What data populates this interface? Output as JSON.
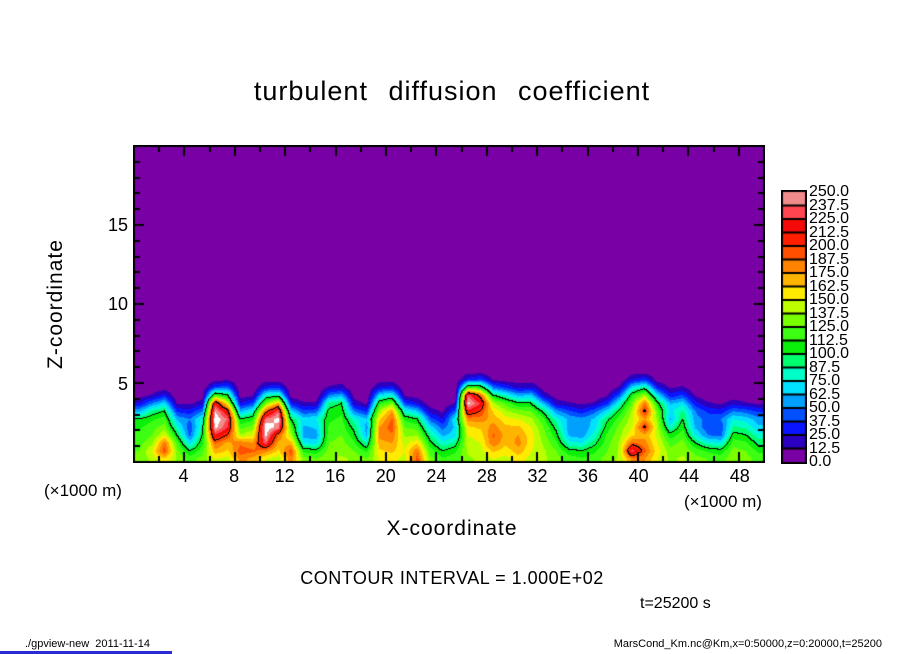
{
  "title": "turbulent diffusion coefficient",
  "xlabel": "X-coordinate",
  "ylabel": "Z-coordinate",
  "x_unit_left": "(×1000 m)",
  "x_unit_right": "(×1000 m)",
  "contour_note": "CONTOUR INTERVAL = 1.000E+02",
  "time_label": "t=25200 s",
  "footer_left": "./gpview-new  2011-11-14",
  "footer_right": "MarsCond_Km.nc@Km,x=0:50000,z=0:20000,t=25200",
  "colorbar": {
    "labels_top_to_bottom": [
      "250.0",
      "237.5",
      "225.0",
      "212.5",
      "200.0",
      "187.5",
      "175.0",
      "162.5",
      "150.0",
      "137.5",
      "125.0",
      "112.5",
      "100.0",
      "87.5",
      "75.0",
      "62.5",
      "50.0",
      "37.5",
      "25.0",
      "12.5",
      "0.0"
    ]
  },
  "chart_data": {
    "type": "heatmap",
    "title": "turbulent diffusion coefficient",
    "xlabel": "X-coordinate",
    "ylabel": "Z-coordinate",
    "x_unit": "×1000 m",
    "xlim": [
      0,
      50
    ],
    "ylim": [
      0,
      20
    ],
    "x_major_ticks": [
      4,
      8,
      12,
      16,
      20,
      24,
      28,
      32,
      36,
      40,
      44,
      48
    ],
    "x_minor_step": 2,
    "y_major_ticks": [
      5,
      10,
      15
    ],
    "y_minor_step": 1,
    "contour_interval": 100,
    "time_seconds": 25200,
    "levels_step": 12.5,
    "levels_max": 250,
    "level_colors_low_to_high": [
      "#7800A5",
      "#2B00BE",
      "#0A14FF",
      "#0050FF",
      "#00A0FF",
      "#00E1FF",
      "#00FFC8",
      "#00FF6E",
      "#0AF00A",
      "#3CFF14",
      "#78FF00",
      "#BEFF00",
      "#FFEB00",
      "#FFB400",
      "#FF8200",
      "#FF5000",
      "#FF1E00",
      "#F50A0A",
      "#FF4650",
      "#F08C8C"
    ],
    "overflow_color": "#FFFFFF",
    "contour_color": "#000000",
    "grid": {
      "orientation": "columns (each array runs bottom to top along z_centers); values above top z fade to 0",
      "x_centers": [
        0.5,
        1.5,
        2.5,
        3.5,
        4.5,
        5.5,
        6.5,
        7.5,
        8.5,
        9.5,
        10.5,
        11.5,
        12.5,
        13.5,
        14.5,
        15.5,
        16.5,
        17.5,
        18.5,
        19.5,
        20.5,
        21.5,
        22.5,
        23.5,
        24.5,
        25.5,
        26.5,
        27.5,
        28.5,
        29.5,
        30.5,
        31.5,
        32.5,
        33.5,
        34.5,
        35.5,
        36.5,
        37.5,
        38.5,
        39.5,
        40.5,
        41.5,
        42.5,
        43.5,
        44.5,
        45.5,
        46.5,
        47.5,
        48.5,
        49.5
      ],
      "z_centers": [
        0.25,
        0.75,
        1.25,
        1.75,
        2.25,
        2.75,
        3.25,
        3.75,
        4.25,
        4.75,
        5.25,
        5.75
      ],
      "columns": [
        [
          130,
          125,
          120,
          115,
          110,
          100,
          60,
          25,
          5,
          0,
          0,
          0
        ],
        [
          140,
          150,
          135,
          125,
          120,
          110,
          90,
          50,
          15,
          0,
          0,
          0
        ],
        [
          160,
          195,
          185,
          150,
          130,
          120,
          100,
          70,
          30,
          5,
          0,
          0
        ],
        [
          135,
          130,
          120,
          100,
          80,
          60,
          35,
          10,
          0,
          0,
          0,
          0
        ],
        [
          120,
          100,
          70,
          45,
          40,
          50,
          30,
          10,
          0,
          0,
          0,
          0
        ],
        [
          130,
          120,
          110,
          100,
          90,
          80,
          50,
          20,
          5,
          0,
          0,
          0
        ],
        [
          150,
          170,
          190,
          225,
          255,
          262,
          250,
          220,
          120,
          40,
          5,
          0
        ],
        [
          145,
          160,
          170,
          200,
          225,
          235,
          210,
          150,
          100,
          45,
          10,
          0
        ],
        [
          180,
          195,
          185,
          140,
          120,
          100,
          60,
          25,
          5,
          0,
          0,
          0
        ],
        [
          170,
          190,
          175,
          150,
          130,
          110,
          80,
          40,
          10,
          0,
          0,
          0
        ],
        [
          150,
          180,
          235,
          255,
          260,
          240,
          190,
          130,
          80,
          30,
          5,
          0
        ],
        [
          140,
          160,
          170,
          190,
          245,
          255,
          235,
          170,
          90,
          35,
          5,
          0
        ],
        [
          185,
          195,
          170,
          140,
          120,
          100,
          70,
          30,
          5,
          0,
          0,
          0
        ],
        [
          130,
          110,
          75,
          55,
          60,
          70,
          40,
          15,
          0,
          0,
          0,
          0
        ],
        [
          125,
          105,
          70,
          55,
          65,
          75,
          45,
          15,
          0,
          0,
          0,
          0
        ],
        [
          135,
          130,
          125,
          120,
          115,
          110,
          105,
          90,
          50,
          15,
          0,
          0
        ],
        [
          140,
          135,
          130,
          125,
          120,
          115,
          110,
          100,
          60,
          20,
          5,
          0
        ],
        [
          135,
          125,
          115,
          105,
          95,
          80,
          50,
          20,
          5,
          0,
          0,
          0
        ],
        [
          125,
          110,
          85,
          60,
          55,
          65,
          35,
          10,
          0,
          0,
          0,
          0
        ],
        [
          150,
          160,
          170,
          180,
          175,
          160,
          140,
          110,
          70,
          25,
          5,
          0
        ],
        [
          155,
          165,
          175,
          185,
          195,
          190,
          175,
          130,
          80,
          30,
          5,
          0
        ],
        [
          145,
          150,
          145,
          135,
          125,
          110,
          80,
          40,
          10,
          0,
          0,
          0
        ],
        [
          195,
          185,
          160,
          135,
          120,
          100,
          65,
          25,
          5,
          0,
          0,
          0
        ],
        [
          130,
          120,
          105,
          90,
          70,
          45,
          20,
          5,
          0,
          0,
          0,
          0
        ],
        [
          115,
          100,
          80,
          60,
          45,
          25,
          10,
          0,
          0,
          0,
          0,
          0
        ],
        [
          120,
          110,
          90,
          70,
          65,
          75,
          45,
          15,
          0,
          0,
          0,
          0
        ],
        [
          135,
          140,
          145,
          150,
          160,
          180,
          220,
          255,
          235,
          120,
          30,
          5
        ],
        [
          140,
          145,
          150,
          155,
          165,
          180,
          200,
          225,
          190,
          110,
          40,
          5
        ],
        [
          150,
          165,
          185,
          190,
          180,
          170,
          160,
          140,
          100,
          50,
          10,
          0
        ],
        [
          145,
          155,
          165,
          170,
          165,
          155,
          140,
          120,
          80,
          35,
          5,
          0
        ],
        [
          155,
          170,
          180,
          175,
          165,
          150,
          130,
          100,
          60,
          20,
          5,
          0
        ],
        [
          145,
          150,
          155,
          155,
          150,
          140,
          125,
          100,
          65,
          25,
          5,
          0
        ],
        [
          140,
          140,
          135,
          130,
          125,
          115,
          95,
          60,
          20,
          5,
          0,
          0
        ],
        [
          130,
          125,
          115,
          105,
          95,
          80,
          55,
          20,
          5,
          0,
          0,
          0
        ],
        [
          120,
          105,
          80,
          60,
          55,
          60,
          40,
          15,
          0,
          0,
          0,
          0
        ],
        [
          115,
          100,
          75,
          55,
          50,
          55,
          30,
          10,
          0,
          0,
          0,
          0
        ],
        [
          120,
          110,
          95,
          80,
          70,
          65,
          45,
          15,
          0,
          0,
          0,
          0
        ],
        [
          130,
          125,
          120,
          115,
          105,
          95,
          70,
          35,
          10,
          0,
          0,
          0
        ],
        [
          140,
          140,
          140,
          135,
          130,
          120,
          105,
          80,
          45,
          15,
          0,
          0
        ],
        [
          180,
          235,
          190,
          160,
          150,
          145,
          140,
          130,
          110,
          70,
          25,
          5
        ],
        [
          175,
          190,
          180,
          170,
          205,
          175,
          205,
          185,
          140,
          90,
          35,
          5
        ],
        [
          150,
          155,
          150,
          145,
          140,
          135,
          125,
          105,
          70,
          30,
          5,
          0
        ],
        [
          135,
          130,
          120,
          105,
          80,
          60,
          70,
          60,
          30,
          10,
          0,
          0
        ],
        [
          140,
          135,
          130,
          120,
          110,
          100,
          90,
          70,
          40,
          15,
          0,
          0
        ],
        [
          130,
          120,
          100,
          75,
          60,
          55,
          50,
          30,
          10,
          0,
          0,
          0
        ],
        [
          125,
          110,
          80,
          50,
          40,
          45,
          35,
          15,
          0,
          0,
          0,
          0
        ],
        [
          120,
          105,
          75,
          45,
          40,
          50,
          30,
          10,
          0,
          0,
          0,
          0
        ],
        [
          135,
          130,
          120,
          105,
          90,
          75,
          50,
          20,
          5,
          0,
          0,
          0
        ],
        [
          130,
          125,
          115,
          100,
          85,
          70,
          45,
          15,
          0,
          0,
          0,
          0
        ],
        [
          120,
          110,
          95,
          80,
          65,
          55,
          35,
          10,
          0,
          0,
          0,
          0
        ]
      ]
    }
  }
}
